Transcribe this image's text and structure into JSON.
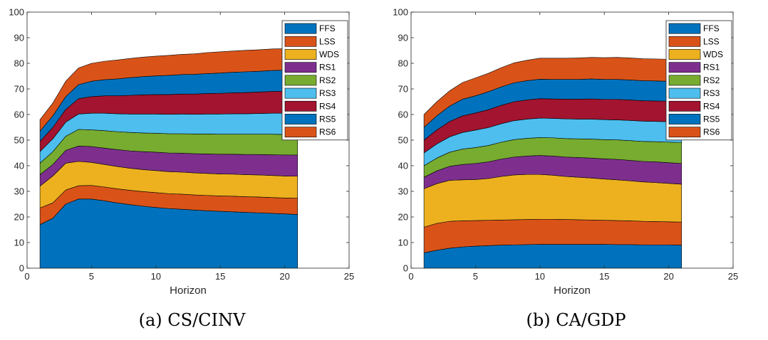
{
  "figures": [
    {
      "caption": "(a) CS/CINV",
      "chart_data": {
        "type": "area",
        "stacked": true,
        "xlabel": "Horizon",
        "ylabel": "",
        "xlim": [
          0,
          25
        ],
        "ylim": [
          0,
          100
        ],
        "xticks": [
          0,
          5,
          10,
          15,
          20,
          25
        ],
        "yticks": [
          0,
          10,
          20,
          30,
          40,
          50,
          60,
          70,
          80,
          90,
          100
        ],
        "legend_position": "top-right",
        "grid": false,
        "x": [
          1,
          2,
          3,
          4,
          5,
          6,
          7,
          8,
          9,
          10,
          11,
          12,
          13,
          14,
          15,
          16,
          17,
          18,
          19,
          20,
          21
        ],
        "series": [
          {
            "name": "FFS",
            "color": "#0072bd",
            "values": [
              17,
              19.5,
              25,
              27,
              27,
              26.3,
              25.5,
              24.8,
              24.2,
              23.7,
              23.3,
              23,
              22.7,
              22.4,
              22.2,
              22,
              21.8,
              21.6,
              21.4,
              21.2,
              21
            ]
          },
          {
            "name": "LSS",
            "color": "#d95319",
            "values": [
              6.5,
              6,
              5.5,
              5.2,
              5.3,
              5.4,
              5.5,
              5.6,
              5.7,
              5.8,
              5.8,
              5.9,
              5.9,
              6,
              6,
              6.1,
              6.1,
              6.2,
              6.2,
              6.2,
              6.3
            ]
          },
          {
            "name": "WDS",
            "color": "#edb120",
            "values": [
              8.5,
              10.5,
              10.5,
              9.5,
              9,
              8.8,
              8.7,
              8.6,
              8.6,
              8.6,
              8.6,
              8.6,
              8.6,
              8.6,
              8.6,
              8.6,
              8.6,
              8.6,
              8.6,
              8.6,
              8.6
            ]
          },
          {
            "name": "RS1",
            "color": "#7e2f8e",
            "values": [
              4.5,
              4.5,
              5,
              6,
              6.2,
              6.4,
              6.6,
              6.8,
              7,
              7.2,
              7.3,
              7.4,
              7.5,
              7.6,
              7.7,
              7.8,
              7.9,
              8,
              8.1,
              8.2,
              8.3
            ]
          },
          {
            "name": "RS2",
            "color": "#77ac30",
            "values": [
              4.5,
              5,
              5.5,
              6.5,
              6.5,
              6.8,
              7,
              7.2,
              7.3,
              7.4,
              7.5,
              7.6,
              7.7,
              7.8,
              7.8,
              7.8,
              7.9,
              7.9,
              8,
              8,
              8
            ]
          },
          {
            "name": "RS3",
            "color": "#4dbeee",
            "values": [
              4.5,
              5,
              5.5,
              6,
              6.5,
              6.8,
              7,
              7.2,
              7.4,
              7.5,
              7.6,
              7.7,
              7.7,
              7.8,
              7.9,
              8,
              8,
              8.1,
              8.2,
              8.3,
              8.4
            ]
          },
          {
            "name": "RS4",
            "color": "#a2142f",
            "values": [
              4,
              4.5,
              5,
              6,
              6.5,
              6.8,
              7,
              7.3,
              7.5,
              7.6,
              7.7,
              7.8,
              7.9,
              8,
              8.1,
              8.2,
              8.3,
              8.4,
              8.5,
              8.6,
              8.7
            ]
          },
          {
            "name": "RS5",
            "color": "#0072bd",
            "values": [
              4,
              4.5,
              5,
              5.5,
              6,
              6.3,
              6.6,
              6.9,
              7.1,
              7.3,
              7.5,
              7.6,
              7.7,
              7.8,
              7.9,
              8,
              8.1,
              8.1,
              8.2,
              8.2,
              8.2
            ]
          },
          {
            "name": "RS6",
            "color": "#d95319",
            "values": [
              4.5,
              5,
              6,
              6.5,
              7,
              7.2,
              7.4,
              7.5,
              7.6,
              7.7,
              7.8,
              7.9,
              8,
              8.2,
              8.3,
              8.3,
              8.4,
              8.4,
              8.4,
              8.4,
              8.4
            ]
          }
        ]
      }
    },
    {
      "caption": "(b) CA/GDP",
      "chart_data": {
        "type": "area",
        "stacked": true,
        "xlabel": "Horizon",
        "ylabel": "",
        "xlim": [
          0,
          25
        ],
        "ylim": [
          0,
          100
        ],
        "xticks": [
          0,
          5,
          10,
          15,
          20,
          25
        ],
        "yticks": [
          0,
          10,
          20,
          30,
          40,
          50,
          60,
          70,
          80,
          90,
          100
        ],
        "legend_position": "top-right",
        "grid": false,
        "x": [
          1,
          2,
          3,
          4,
          5,
          6,
          7,
          8,
          9,
          10,
          11,
          12,
          13,
          14,
          15,
          16,
          17,
          18,
          19,
          20,
          21
        ],
        "series": [
          {
            "name": "FFS",
            "color": "#0072bd",
            "values": [
              6,
              7,
              7.8,
              8.3,
              8.6,
              8.8,
              9,
              9.1,
              9.2,
              9.3,
              9.3,
              9.3,
              9.3,
              9.3,
              9.3,
              9.2,
              9.2,
              9.1,
              9.1,
              9.1,
              9
            ]
          },
          {
            "name": "LSS",
            "color": "#d95319",
            "values": [
              10,
              10.5,
              10.5,
              10.2,
              10,
              9.9,
              9.8,
              9.8,
              9.8,
              9.8,
              9.8,
              9.7,
              9.6,
              9.5,
              9.4,
              9.4,
              9.3,
              9.2,
              9.1,
              9,
              9
            ]
          },
          {
            "name": "WDS",
            "color": "#edb120",
            "values": [
              15,
              15.5,
              16,
              16,
              16,
              16.3,
              17,
              17.5,
              17.6,
              17.5,
              17.2,
              16.8,
              16.6,
              16.4,
              16.1,
              15.9,
              15.6,
              15.4,
              15.2,
              15,
              14.8
            ]
          },
          {
            "name": "RS1",
            "color": "#7e2f8e",
            "values": [
              4.5,
              5,
              5.5,
              6,
              6.3,
              6.5,
              6.8,
              7,
              7.2,
              7.4,
              7.5,
              7.6,
              7.7,
              7.8,
              7.9,
              8,
              8,
              8,
              8.1,
              8.1,
              8.1
            ]
          },
          {
            "name": "RS2",
            "color": "#77ac30",
            "values": [
              4.5,
              5,
              5.5,
              6,
              6.2,
              6.4,
              6.6,
              6.8,
              6.9,
              7,
              7.1,
              7.2,
              7.3,
              7.4,
              7.5,
              7.6,
              7.7,
              7.8,
              7.9,
              8,
              8.2
            ]
          },
          {
            "name": "RS3",
            "color": "#4dbeee",
            "values": [
              5,
              5.5,
              6,
              6.5,
              6.8,
              7,
              7.2,
              7.4,
              7.5,
              7.6,
              7.6,
              7.7,
              7.7,
              7.8,
              7.8,
              7.8,
              7.9,
              7.9,
              7.9,
              8,
              8
            ]
          },
          {
            "name": "RS4",
            "color": "#a2142f",
            "values": [
              5,
              5.5,
              6,
              6.5,
              6.7,
              7,
              7.2,
              7.4,
              7.5,
              7.6,
              7.6,
              7.7,
              7.8,
              7.9,
              7.9,
              8,
              8,
              8,
              8,
              8,
              8
            ]
          },
          {
            "name": "RS5",
            "color": "#0072bd",
            "values": [
              5,
              5.5,
              6,
              6.5,
              6.7,
              7,
              7.2,
              7.4,
              7.5,
              7.6,
              7.6,
              7.7,
              7.7,
              7.8,
              7.8,
              7.8,
              7.8,
              7.8,
              7.8,
              7.8,
              7.8
            ]
          },
          {
            "name": "RS6",
            "color": "#d95319",
            "values": [
              5,
              5.5,
              6,
              6.5,
              7,
              7.2,
              7.5,
              7.8,
              8,
              8.2,
              8.3,
              8.3,
              8.4,
              8.4,
              8.5,
              8.6,
              8.6,
              8.6,
              8.6,
              8.6,
              8.6
            ]
          }
        ]
      }
    }
  ]
}
